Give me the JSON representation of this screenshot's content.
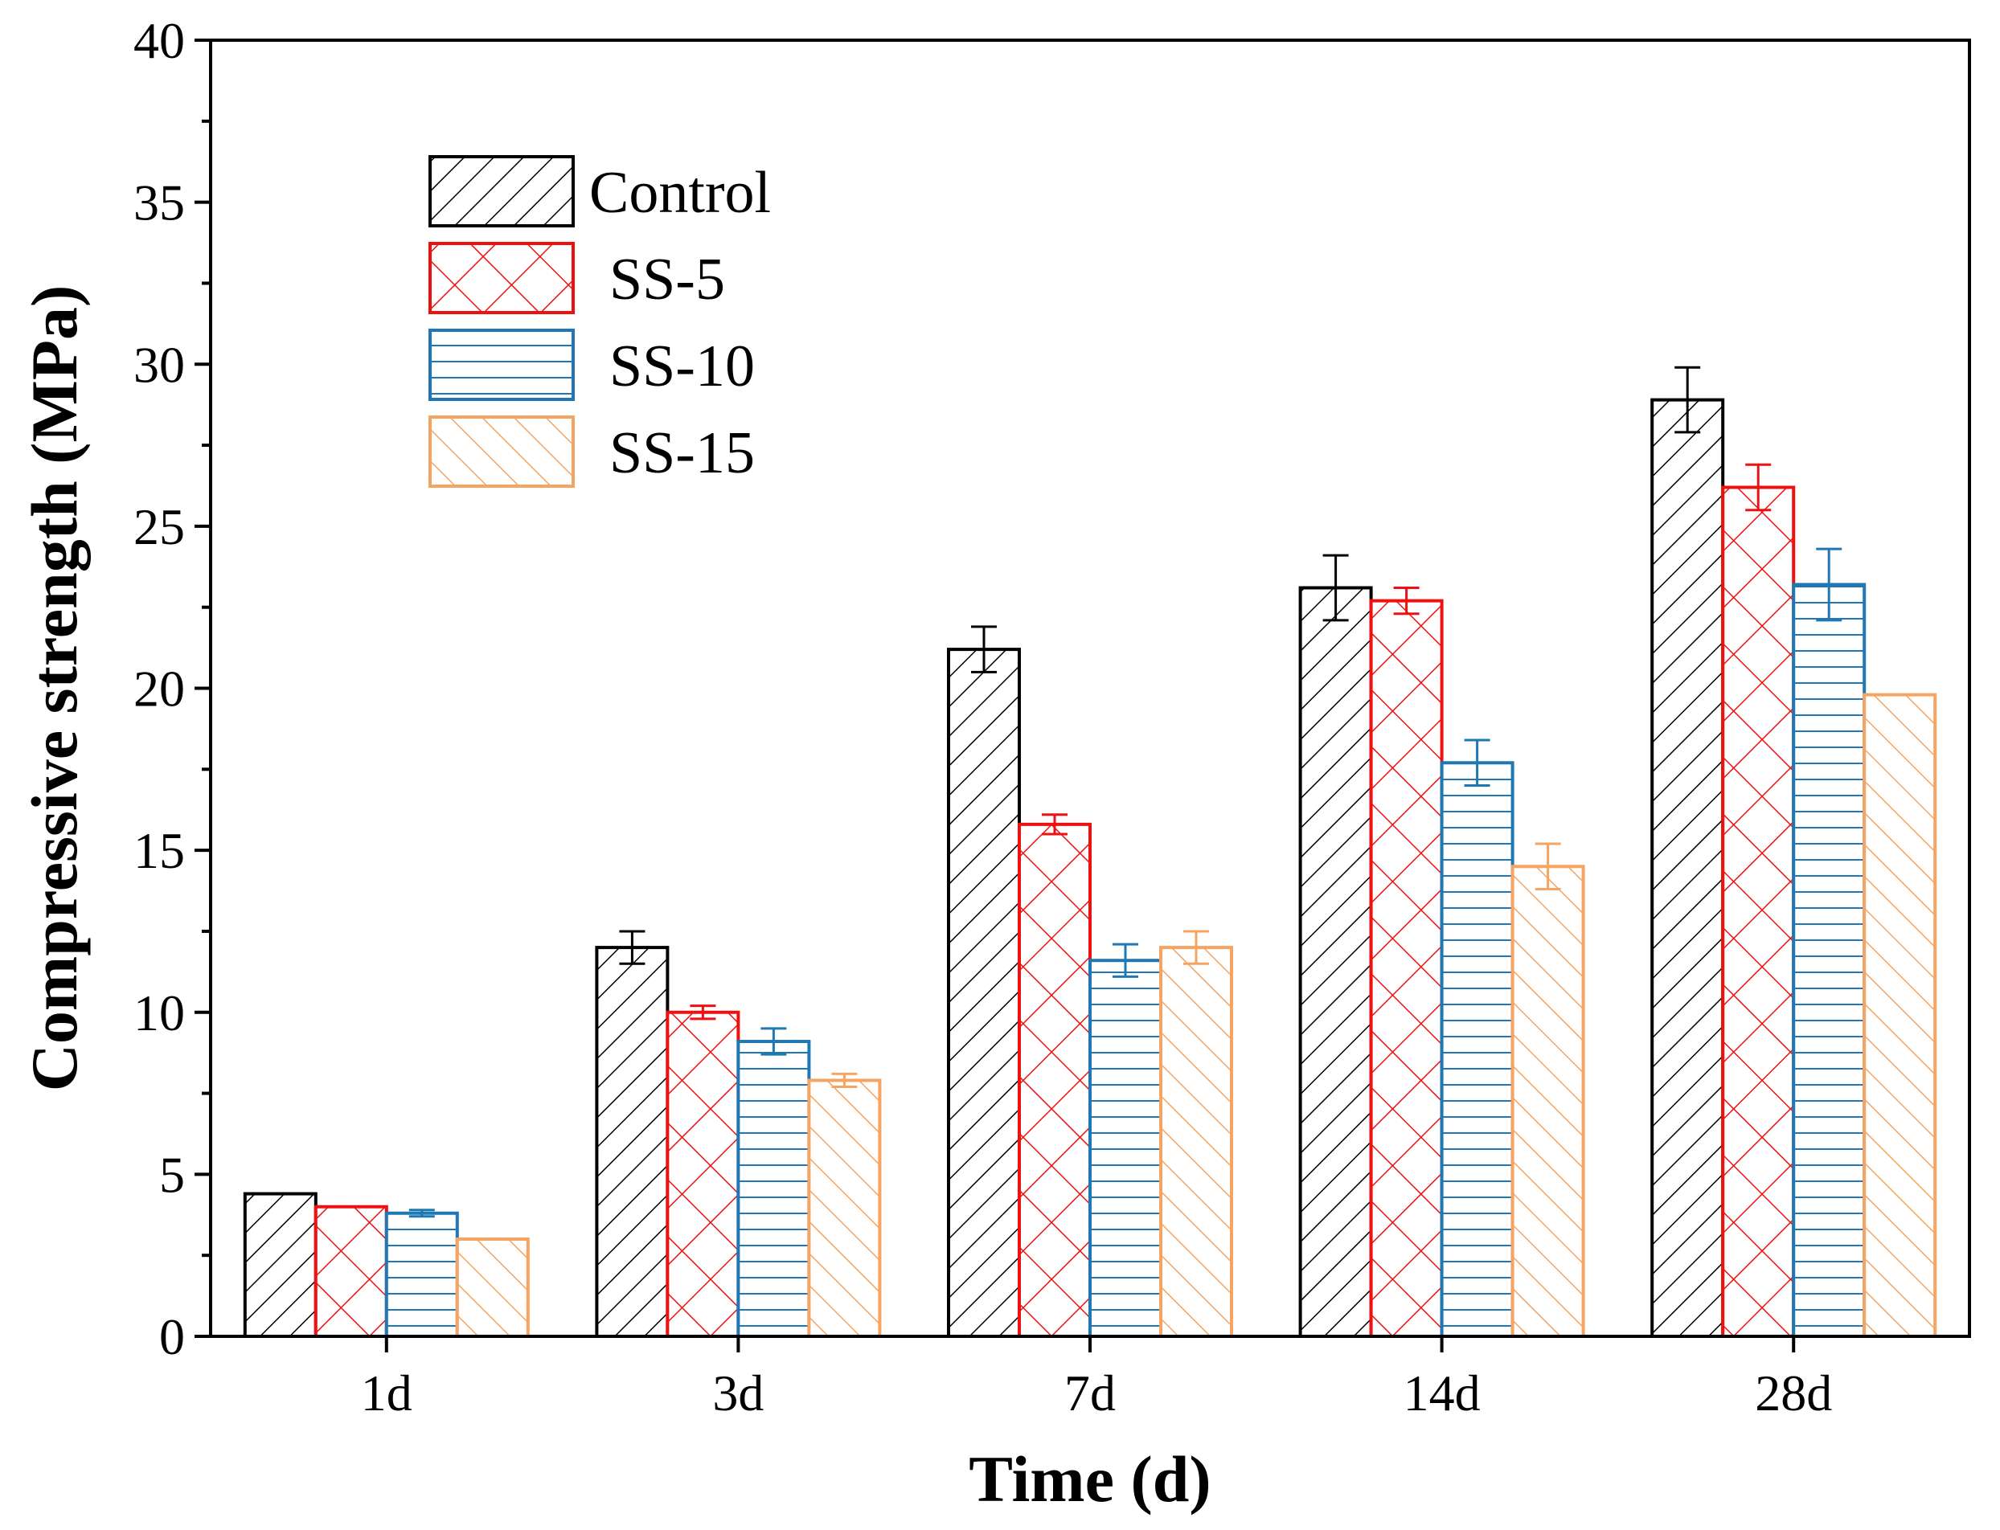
{
  "chart_data": {
    "type": "bar",
    "title": "",
    "xlabel": "Time (d)",
    "ylabel": "Compressive strength (MPa)",
    "categories": [
      "1d",
      "3d",
      "7d",
      "14d",
      "28d"
    ],
    "ylim": [
      0,
      40
    ],
    "yticks": [
      "0",
      "5",
      "10",
      "15",
      "20",
      "25",
      "30",
      "35",
      "40"
    ],
    "legend_position": "top-left",
    "grid": false,
    "error_bars": true,
    "series": [
      {
        "name": "Control",
        "color": "#000000",
        "pattern": "diagonal",
        "values": [
          4.4,
          12.0,
          21.2,
          23.1,
          28.9
        ],
        "errors": [
          0.0,
          0.5,
          0.7,
          1.0,
          1.0
        ]
      },
      {
        "name": "SS-5",
        "color": "#ee1111",
        "pattern": "crosshatch",
        "values": [
          4.0,
          10.0,
          15.8,
          22.7,
          26.2
        ],
        "errors": [
          0.0,
          0.2,
          0.3,
          0.4,
          0.7
        ]
      },
      {
        "name": "SS-10",
        "color": "#1f78b4",
        "pattern": "horizontal",
        "values": [
          3.8,
          9.1,
          11.6,
          17.7,
          23.2
        ],
        "errors": [
          0.1,
          0.4,
          0.5,
          0.7,
          1.1
        ]
      },
      {
        "name": "SS-15",
        "color": "#f5a461",
        "pattern": "back-diagonal",
        "values": [
          3.0,
          7.9,
          12.0,
          14.5,
          19.8
        ],
        "errors": [
          0.0,
          0.2,
          0.5,
          0.7,
          0.0
        ]
      }
    ]
  }
}
